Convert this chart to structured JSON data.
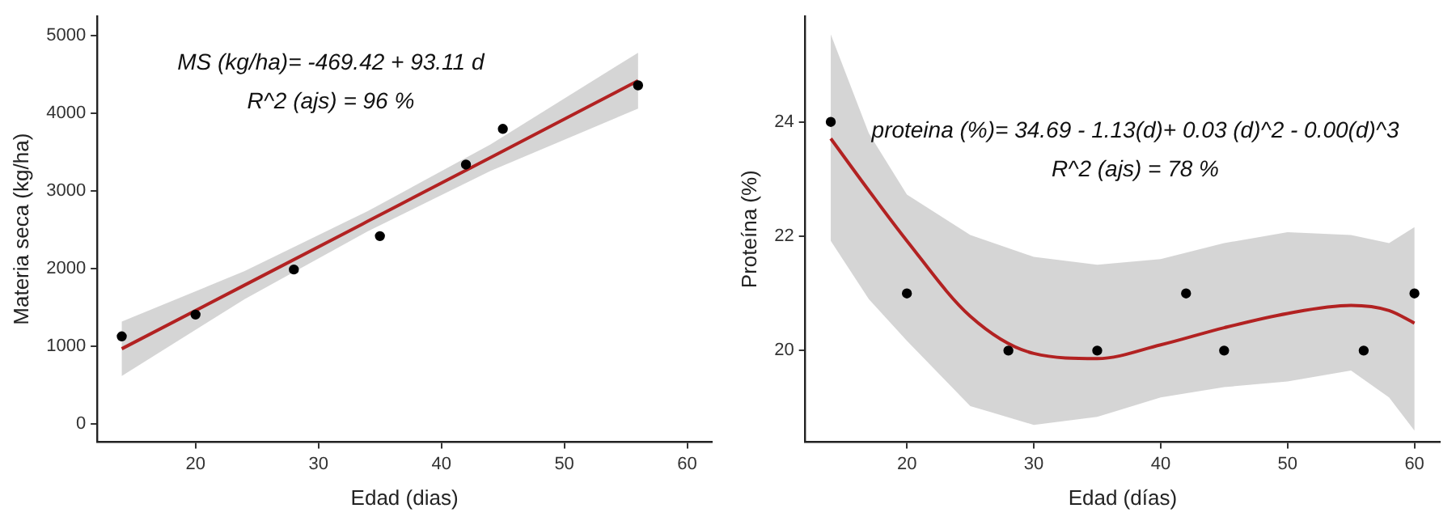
{
  "chart_data": [
    {
      "type": "scatter",
      "xlabel": "Edad (dias)",
      "ylabel": "Materia seca (kg/ha)",
      "xlim": [
        12,
        62
      ],
      "ylim": [
        -230,
        5250
      ],
      "xticks": [
        20,
        30,
        40,
        50,
        60
      ],
      "yticks": [
        0,
        1000,
        2000,
        3000,
        4000,
        5000
      ],
      "grid": false,
      "legend": false,
      "marker": "circle",
      "annotations": [
        "MS (kg/ha)= -469.42 + 93.11 d",
        "R^2 (ajs) = 96 %"
      ],
      "series": [
        {
          "color": "#000000",
          "x": [
            14,
            20,
            28,
            35,
            42,
            45,
            56
          ],
          "values": [
            1130,
            1410,
            1990,
            2420,
            3340,
            3800,
            4360
          ]
        },
        {
          "type": "line",
          "color": "#b22222",
          "marker": "none",
          "x": [
            14,
            24,
            34,
            44,
            56
          ],
          "values": [
            970,
            1790,
            2610,
            3430,
            4420
          ],
          "lower": [
            620,
            1610,
            2480,
            3260,
            4060
          ],
          "upper": [
            1320,
            1970,
            2740,
            3600,
            4780
          ]
        }
      ]
    },
    {
      "type": "scatter",
      "xlabel": "Edad (días)",
      "ylabel": "Proteína (%)",
      "xlim": [
        12,
        62
      ],
      "ylim": [
        18.4,
        25.85
      ],
      "xticks": [
        20,
        30,
        40,
        50,
        60
      ],
      "yticks": [
        20,
        22,
        24
      ],
      "grid": false,
      "legend": false,
      "marker": "circle",
      "annotations": [
        "proteina (%)= 34.69 - 1.13(d)+ 0.03 (d)^2 - 0.00(d)^3",
        "R^2 (ajs) = 78 %"
      ],
      "series": [
        {
          "color": "#000000",
          "x": [
            14,
            20,
            28,
            35,
            42,
            45,
            56,
            60
          ],
          "values": [
            24,
            21,
            20,
            20,
            21,
            20,
            20,
            21
          ]
        },
        {
          "type": "line",
          "color": "#b22222",
          "marker": "none",
          "x": [
            14,
            17,
            20,
            25,
            30,
            35,
            40,
            45,
            50,
            55,
            58,
            60
          ],
          "values": [
            23.71,
            22.8,
            21.92,
            20.6,
            19.95,
            19.86,
            20.1,
            20.4,
            20.65,
            20.79,
            20.7,
            20.48
          ],
          "lower": [
            21.92,
            20.9,
            20.17,
            19.03,
            18.7,
            18.84,
            19.18,
            19.36,
            19.46,
            19.65,
            19.18,
            18.6
          ],
          "upper": [
            25.53,
            23.8,
            22.73,
            22.02,
            21.64,
            21.5,
            21.6,
            21.88,
            22.07,
            22.02,
            21.88,
            22.16
          ]
        }
      ]
    }
  ]
}
